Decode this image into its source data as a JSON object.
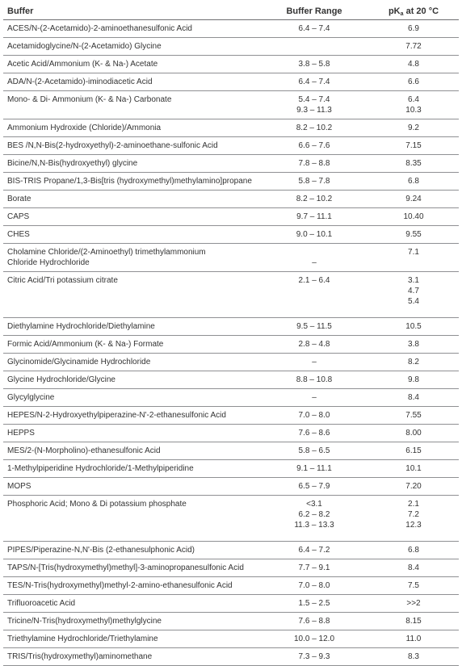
{
  "header": {
    "buffer": "Buffer",
    "range": "Buffer Range",
    "pka_prefix": "pK",
    "pka_sub": "a",
    "pka_suffix": " at 20 °C"
  },
  "rows": [
    {
      "buffer": [
        "ACES/N-(2-Acetamido)-2-aminoethanesulfonic Acid"
      ],
      "range": [
        "6.4 – 7.4"
      ],
      "pka": [
        "6.9"
      ]
    },
    {
      "buffer": [
        "Acetamidoglycine/N-(2-Acetamido) Glycine"
      ],
      "range": [
        ""
      ],
      "pka": [
        "7.72"
      ]
    },
    {
      "buffer": [
        "Acetic Acid/Ammonium (K- & Na-) Acetate"
      ],
      "range": [
        "3.8 – 5.8"
      ],
      "pka": [
        "4.8"
      ]
    },
    {
      "buffer": [
        "ADA/N-(2-Acetamido)-iminodiacetic Acid"
      ],
      "range": [
        "6.4 – 7.4"
      ],
      "pka": [
        "6.6"
      ]
    },
    {
      "buffer": [
        "Mono- & Di- Ammonium (K- & Na-) Carbonate"
      ],
      "range": [
        "5.4 – 7.4",
        "9.3 – 11.3"
      ],
      "pka": [
        "6.4",
        "10.3"
      ]
    },
    {
      "buffer": [
        "Ammonium Hydroxide (Chloride)/Ammonia"
      ],
      "range": [
        "8.2 – 10.2"
      ],
      "pka": [
        "9.2"
      ]
    },
    {
      "buffer": [
        "BES /N,N-Bis(2-hydroxyethyl)-2-aminoethane-sulfonic Acid"
      ],
      "range": [
        "6.6 – 7.6"
      ],
      "pka": [
        "7.15"
      ]
    },
    {
      "buffer": [
        "Bicine/N,N-Bis(hydroxyethyl) glycine"
      ],
      "range": [
        "7.8 – 8.8"
      ],
      "pka": [
        "8.35"
      ]
    },
    {
      "buffer": [
        "BIS-TRIS Propane/1,3-Bis[tris (hydroxymethyl)methylamino]propane"
      ],
      "range": [
        "5.8 – 7.8"
      ],
      "pka": [
        "6.8"
      ]
    },
    {
      "buffer": [
        "Borate"
      ],
      "range": [
        "8.2 – 10.2"
      ],
      "pka": [
        "9.24"
      ]
    },
    {
      "buffer": [
        "CAPS"
      ],
      "range": [
        "9.7 – 11.1"
      ],
      "pka": [
        "10.40"
      ]
    },
    {
      "buffer": [
        "CHES"
      ],
      "range": [
        "9.0 – 10.1"
      ],
      "pka": [
        "9.55"
      ]
    },
    {
      "buffer": [
        "Cholamine Chloride/(2-Aminoethyl) trimethylammonium",
        "Chloride Hydrochloride"
      ],
      "range": [
        "",
        "–"
      ],
      "pka": [
        "7.1"
      ]
    },
    {
      "buffer": [
        "Citric Acid/Tri potassium citrate"
      ],
      "range": [
        "2.1 – 6.4"
      ],
      "pka": [
        "3.1",
        "4.7",
        "5.4"
      ],
      "extra": true
    },
    {
      "buffer": [
        "Diethylamine Hydrochloride/Diethylamine"
      ],
      "range": [
        "9.5 – 11.5"
      ],
      "pka": [
        "10.5"
      ]
    },
    {
      "buffer": [
        "Formic Acid/Ammonium (K- & Na-) Formate"
      ],
      "range": [
        "2.8 – 4.8"
      ],
      "pka": [
        "3.8"
      ]
    },
    {
      "buffer": [
        "Glycinomide/Glycinamide Hydrochloride"
      ],
      "range": [
        "–"
      ],
      "pka": [
        "8.2"
      ]
    },
    {
      "buffer": [
        "Glycine Hydrochloride/Glycine"
      ],
      "range": [
        "8.8 – 10.8"
      ],
      "pka": [
        "9.8"
      ]
    },
    {
      "buffer": [
        "Glycylglycine"
      ],
      "range": [
        "–"
      ],
      "pka": [
        "8.4"
      ]
    },
    {
      "buffer": [
        "HEPES/N-2-Hydroxyethylpiperazine-N'-2-ethanesulfonic Acid"
      ],
      "range": [
        "7.0 – 8.0"
      ],
      "pka": [
        "7.55"
      ]
    },
    {
      "buffer": [
        "HEPPS"
      ],
      "range": [
        "7.6 – 8.6"
      ],
      "pka": [
        "8.00"
      ]
    },
    {
      "buffer": [
        "MES/2-(N-Morpholino)-ethanesulfonic Acid"
      ],
      "range": [
        "5.8 – 6.5"
      ],
      "pka": [
        "6.15"
      ]
    },
    {
      "buffer": [
        "1-Methylpiperidine Hydrochloride/1-Methylpiperidine"
      ],
      "range": [
        "9.1 – 11.1"
      ],
      "pka": [
        "10.1"
      ]
    },
    {
      "buffer": [
        "MOPS"
      ],
      "range": [
        "6.5 – 7.9"
      ],
      "pka": [
        "7.20"
      ]
    },
    {
      "buffer": [
        "Phosphoric Acid; Mono & Di potassium phosphate"
      ],
      "range": [
        "<3.1",
        "6.2 – 8.2",
        "11.3 – 13.3"
      ],
      "pka": [
        "2.1",
        "7.2",
        "12.3"
      ],
      "extra": true
    },
    {
      "buffer": [
        "PIPES/Piperazine-N,N'-Bis (2-ethanesulphonic Acid)"
      ],
      "range": [
        "6.4 – 7.2"
      ],
      "pka": [
        "6.8"
      ]
    },
    {
      "buffer": [
        "TAPS/N-[Tris(hydroxymethyl)methyl]-3-aminopropanesulfonic Acid"
      ],
      "range": [
        "7.7 – 9.1"
      ],
      "pka": [
        "8.4"
      ]
    },
    {
      "buffer": [
        "TES/N-Tris(hydroxymethyl)methyl-2-amino-ethanesulfonic Acid"
      ],
      "range": [
        "7.0 – 8.0"
      ],
      "pka": [
        "7.5"
      ]
    },
    {
      "buffer": [
        "Trifluoroacetic Acid"
      ],
      "range": [
        "1.5 – 2.5"
      ],
      "pka": [
        ">>2"
      ]
    },
    {
      "buffer": [
        "Tricine/N-Tris(hydroxymethyl)methylglycine"
      ],
      "range": [
        "7.6 – 8.8"
      ],
      "pka": [
        "8.15"
      ]
    },
    {
      "buffer": [
        "Triethylamine Hydrochloride/Triethylamine"
      ],
      "range": [
        "10.0 – 12.0"
      ],
      "pka": [
        "11.0"
      ]
    },
    {
      "buffer": [
        "TRIS/Tris(hydroxymethyl)aminomethane"
      ],
      "range": [
        "7.3 – 9.3"
      ],
      "pka": [
        "8.3"
      ]
    }
  ]
}
